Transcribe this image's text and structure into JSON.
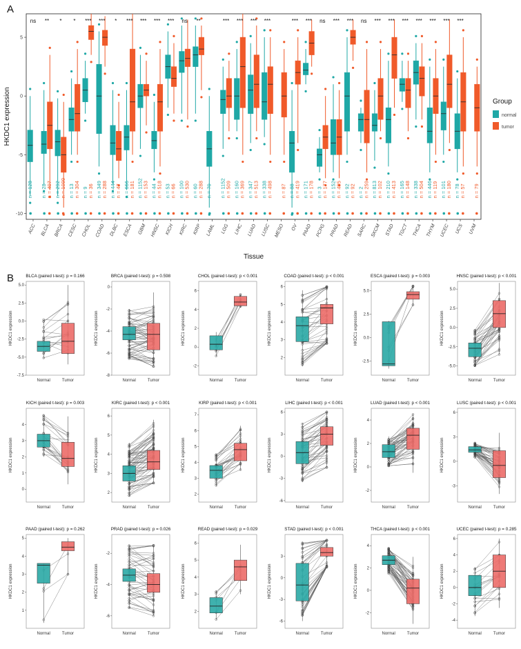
{
  "panel_labels": {
    "a": "A",
    "b": "B"
  },
  "colors": {
    "normal": "#1fa8a6",
    "tumor": "#f05a2a",
    "normal_paired": "#2aa9a5",
    "tumor_paired": "#ec6c68"
  },
  "chart_data": [
    {
      "type": "box",
      "ylabel": "HKDC1 expression",
      "xlabel": "Tissue",
      "ylim": [
        -10.5,
        7
      ],
      "yticks": [
        -10,
        -5,
        0,
        5
      ],
      "legend": {
        "title": "Group",
        "items": [
          "normal",
          "tumor"
        ],
        "position": "right"
      },
      "categories": [
        "ACC",
        "BLCA",
        "BRCA",
        "CESC",
        "CHOL",
        "COAD",
        "DLBC",
        "ESCA",
        "GBM",
        "HNSC",
        "KICH",
        "KIRC",
        "KIRP",
        "LAML",
        "LGG",
        "LIHC",
        "LUAD",
        "LUSC",
        "MESO",
        "OV",
        "PAAD",
        "PCPG",
        "PRAD",
        "READ",
        "SARC",
        "SKCM",
        "STAD",
        "TGCT",
        "THCA",
        "THYM",
        "UCEC",
        "UCS",
        "UVM"
      ],
      "significance": [
        "ns",
        "**",
        "*",
        "*",
        "***",
        "***",
        "*",
        "***",
        "***",
        "***",
        "***",
        "ns",
        "**",
        "",
        "***",
        "***",
        "***",
        "***",
        "",
        "***",
        "***",
        "ns",
        "***",
        "***",
        "ns",
        "***",
        "***",
        "***",
        "***",
        "***",
        "***",
        "***",
        ""
      ],
      "n_normal": [
        "128",
        "28",
        "292",
        "13",
        "9",
        "349",
        "444",
        "666",
        "1152",
        "44",
        "53",
        "100",
        "60",
        "70",
        "1152",
        "160",
        "347",
        "338",
        "",
        "88",
        "171",
        "3",
        "152",
        "92",
        "2",
        "813",
        "210",
        "165",
        "338",
        "446",
        "101",
        "78",
        ""
      ],
      "n_tumor": [
        "",
        "407",
        "1099",
        "304",
        "36",
        "288",
        "47",
        "181",
        "153",
        "518",
        "66",
        "530",
        "288",
        "",
        "509",
        "369",
        "513",
        "498",
        "87",
        "419",
        "178",
        "177",
        "495",
        "92",
        "259",
        "102",
        "413",
        "148",
        "504",
        "119",
        "180",
        "57",
        "79"
      ],
      "normal": [
        [
          -8.5,
          -5.6,
          -4.2,
          -2.9,
          0.0
        ],
        [
          -7.5,
          -4.9,
          -4.1,
          -3.0,
          0.5
        ],
        [
          -8.5,
          -5.1,
          -3.9,
          -2.9,
          -0.2
        ],
        [
          -5.0,
          -3.0,
          -2.0,
          -1.0,
          1.5
        ],
        [
          -1.5,
          -0.5,
          0.5,
          1.5,
          3.0
        ],
        [
          -6.0,
          -3.2,
          0.0,
          2.7,
          5.5
        ],
        [
          -7.5,
          -5.0,
          -4.0,
          -2.5,
          0.5
        ],
        [
          -8.0,
          -4.6,
          -3.5,
          -2.5,
          0.5
        ],
        [
          -4.5,
          -1.0,
          0.0,
          1.0,
          3.5
        ],
        [
          -6.5,
          -4.5,
          -3.8,
          -3.0,
          -0.5
        ],
        [
          -1.0,
          1.5,
          2.5,
          3.5,
          5.5
        ],
        [
          -1.5,
          2.0,
          3.0,
          3.8,
          6.0
        ],
        [
          -1.5,
          2.5,
          3.5,
          4.2,
          6.0
        ],
        [
          -9.5,
          -6.0,
          -4.5,
          -3.0,
          0.0
        ],
        [
          -4.5,
          -1.5,
          -0.3,
          0.5,
          2.5
        ],
        [
          -3.0,
          -2.0,
          0.0,
          1.5,
          4.0
        ],
        [
          -4.0,
          -1.5,
          0.5,
          1.8,
          4.5
        ],
        [
          -3.5,
          -2.0,
          -0.5,
          2.0,
          5.0
        ],
        [
          0,
          0,
          0,
          0,
          0
        ],
        [
          -9.5,
          -6.5,
          -4.0,
          -3.0,
          0.5
        ],
        [
          1.0,
          1.8,
          2.2,
          2.8,
          4.0
        ],
        [
          -6.5,
          -6.0,
          -5.0,
          -4.5,
          -3.5
        ],
        [
          -6.5,
          -5.0,
          -4.0,
          -2.0,
          1.0
        ],
        [
          -5.0,
          -3.0,
          0.0,
          2.0,
          5.0
        ],
        [
          -4.0,
          -3.0,
          -2.0,
          -1.5,
          -1.0
        ],
        [
          -5.5,
          -3.0,
          -2.5,
          -1.5,
          0.5
        ],
        [
          -6.0,
          -4.0,
          -2.0,
          -1.0,
          3.0
        ],
        [
          -0.5,
          0.4,
          1.0,
          1.5,
          3.0
        ],
        [
          -2.0,
          1.0,
          2.0,
          3.0,
          4.5
        ],
        [
          -6.5,
          -4.0,
          -3.0,
          -1.0,
          2.5
        ],
        [
          -5.0,
          -2.9,
          -1.5,
          -0.5,
          2.5
        ],
        [
          -6.5,
          -4.5,
          -3.0,
          -1.5,
          1.5
        ],
        [
          0,
          0,
          0,
          0,
          0
        ]
      ],
      "tumor": [
        [
          0,
          0,
          0,
          0,
          0
        ],
        [
          -8.0,
          -4.5,
          -2.5,
          -0.5,
          3.5
        ],
        [
          -9.5,
          -6.5,
          -5.0,
          -3.5,
          -0.5
        ],
        [
          -5.0,
          -3.0,
          -1.5,
          1.0,
          4.0
        ],
        [
          3.5,
          4.8,
          5.5,
          6.0,
          7.0
        ],
        [
          2.5,
          4.3,
          5.0,
          5.6,
          6.8
        ],
        [
          -7.0,
          -5.5,
          -4.5,
          -3.0,
          -0.5
        ],
        [
          -5.0,
          -3.0,
          -0.5,
          4.0,
          7.0
        ],
        [
          -2.5,
          0.0,
          0.5,
          1.0,
          3.0
        ],
        [
          -6.0,
          -3.0,
          -0.5,
          1.0,
          4.0
        ],
        [
          -1.5,
          0.8,
          1.5,
          2.5,
          4.5
        ],
        [
          -2.0,
          2.5,
          3.2,
          4.0,
          6.5
        ],
        [
          0.5,
          3.5,
          4.0,
          5.0,
          6.0
        ],
        [
          0,
          0,
          0,
          0,
          0
        ],
        [
          -3.0,
          -1.0,
          0.0,
          1.5,
          3.0
        ],
        [
          -5.0,
          -1.0,
          2.5,
          5.0,
          7.0
        ],
        [
          -3.0,
          -1.0,
          1.0,
          3.5,
          6.0
        ],
        [
          -5.0,
          -1.5,
          1.0,
          2.5,
          5.0
        ],
        [
          -5.0,
          -1.8,
          0.0,
          2.0,
          4.0
        ],
        [
          -4.0,
          1.0,
          2.0,
          3.0,
          5.0
        ],
        [
          2.5,
          3.5,
          4.5,
          5.5,
          6.5
        ],
        [
          -7.0,
          -4.5,
          -3.5,
          -2.5,
          0.0
        ],
        [
          -7.0,
          -5.0,
          -3.5,
          -2.0,
          0.5
        ],
        [
          3.0,
          4.4,
          5.0,
          5.6,
          6.5
        ],
        [
          -6.5,
          -4.0,
          -2.0,
          0.5,
          4.0
        ],
        [
          -3.0,
          -2.0,
          0.0,
          1.5,
          4.0
        ],
        [
          -1.0,
          1.5,
          3.5,
          5.0,
          6.5
        ],
        [
          -3.0,
          -1.0,
          0.5,
          1.5,
          3.0
        ],
        [
          -2.0,
          0.0,
          1.5,
          2.5,
          4.5
        ],
        [
          -5.0,
          -1.5,
          0.0,
          1.5,
          4.0
        ],
        [
          -4.0,
          -1.0,
          1.0,
          3.5,
          6.5
        ],
        [
          -6.0,
          -3.0,
          -0.5,
          2.0,
          5.0
        ],
        [
          -6.0,
          -3.0,
          -1.0,
          1.0,
          2.5
        ]
      ]
    },
    {
      "type": "paired-box",
      "title": "BLCA (paired t-test): p = 0.166",
      "ylabel": "HKDC1 expression",
      "categories": [
        "Normal",
        "Tumor"
      ],
      "yticks": [
        "-7.5",
        "-5.0",
        "-2.5",
        "0.0",
        "2.5",
        "5.0"
      ],
      "ylim": [
        -7.5,
        5.5
      ],
      "normal": [
        -5.2,
        -4.2,
        -3.5,
        -2.8,
        0.2
      ],
      "tumor": [
        -6.0,
        -4.5,
        -2.8,
        -0.3,
        5.0
      ],
      "pairs": 16,
      "seed": 1,
      "delta": 1.0,
      "spread": 2.5
    },
    {
      "type": "paired-box",
      "title": "BRCA (paired t-test): p = 0.598",
      "ylabel": "HKDC1 expression",
      "categories": [
        "Normal",
        "Tumor"
      ],
      "yticks": [
        "-8",
        "-6",
        "-4",
        "-2",
        "0"
      ],
      "ylim": [
        -8,
        0.5
      ],
      "normal": [
        -6.5,
        -4.8,
        -4.3,
        -3.6,
        -2.0
      ],
      "tumor": [
        -7.2,
        -5.7,
        -4.3,
        -3.3,
        -0.5
      ],
      "pairs": 60,
      "seed": 2,
      "delta": -0.1,
      "spread": 1.5
    },
    {
      "type": "paired-box",
      "title": "CHOL (paired t-test): p < 0.001",
      "ylabel": "HKDC1 expression",
      "categories": [
        "Normal",
        "Tumor"
      ],
      "yticks": [
        "-2",
        "0",
        "2",
        "4",
        "6"
      ],
      "ylim": [
        -3,
        7
      ],
      "normal": [
        -1.0,
        -0.3,
        0.3,
        1.2,
        1.6
      ],
      "tumor": [
        4.2,
        4.4,
        4.8,
        5.4,
        5.6
      ],
      "pairs": 8,
      "seed": 3,
      "delta": 4.5,
      "spread": 1.0
    },
    {
      "type": "paired-box",
      "title": "COAD (paired t-test): p < 0.001",
      "ylabel": "HKDC1 expression",
      "categories": [
        "Normal",
        "Tumor"
      ],
      "yticks": [
        "2",
        "3",
        "4",
        "5",
        "6"
      ],
      "ylim": [
        1,
        6.3
      ],
      "normal": [
        1.5,
        2.9,
        3.8,
        4.3,
        5.8
      ],
      "tumor": [
        2.8,
        3.9,
        4.8,
        5.0,
        6.0
      ],
      "pairs": 40,
      "seed": 4,
      "delta": 0.8,
      "spread": 1.0
    },
    {
      "type": "paired-box",
      "title": "ESCA (paired t-test): p = 0.003",
      "ylabel": "HKDC1 expression",
      "categories": [
        "Normal",
        "Tumor"
      ],
      "yticks": [
        "-2.5",
        "0.0",
        "2.5",
        "5.0"
      ],
      "ylim": [
        -4,
        6
      ],
      "normal": [
        -3.3,
        -3.0,
        -2.8,
        1.7,
        1.8
      ],
      "tumor": [
        3.5,
        4.1,
        4.6,
        4.9,
        5.5
      ],
      "pairs": 7,
      "seed": 5,
      "delta": 6.0,
      "spread": 2.0
    },
    {
      "type": "paired-box",
      "title": "HNSC (paired t-test): p < 0.001",
      "ylabel": "HKDC1 expression",
      "categories": [
        "Normal",
        "Tumor"
      ],
      "yticks": [
        "-5.0",
        "-2.5",
        "0.0",
        "2.5",
        "5.0"
      ],
      "ylim": [
        -6.2,
        6
      ],
      "normal": [
        -5.0,
        -3.8,
        -2.7,
        -2.0,
        -0.2
      ],
      "tumor": [
        -3.5,
        0.0,
        1.8,
        3.5,
        5.8
      ],
      "pairs": 40,
      "seed": 6,
      "delta": 3.5,
      "spread": 2.2
    },
    {
      "type": "paired-box",
      "title": "KICH (paired t-test): p = 0.003",
      "ylabel": "HKDC1 expression",
      "categories": [
        "Normal",
        "Tumor"
      ],
      "yticks": [
        "0",
        "1",
        "2",
        "3",
        "4"
      ],
      "ylim": [
        -0.8,
        5
      ],
      "normal": [
        2.0,
        2.6,
        3.0,
        3.4,
        4.6
      ],
      "tumor": [
        0.3,
        1.4,
        1.9,
        2.9,
        4.5
      ],
      "pairs": 24,
      "seed": 7,
      "delta": -1.0,
      "spread": 1.0
    },
    {
      "type": "paired-box",
      "title": "KIRC (paired t-test): p < 0.001",
      "ylabel": "HKDC1 expression",
      "categories": [
        "Normal",
        "Tumor"
      ],
      "yticks": [
        "2",
        "3",
        "4",
        "5",
        "6"
      ],
      "ylim": [
        1.5,
        6.4
      ],
      "normal": [
        1.8,
        2.6,
        3.0,
        3.4,
        4.6
      ],
      "tumor": [
        2.5,
        3.2,
        3.6,
        4.2,
        5.8
      ],
      "pairs": 70,
      "seed": 8,
      "delta": 0.6,
      "spread": 0.8
    },
    {
      "type": "paired-box",
      "title": "KIRP (paired t-test): p < 0.001",
      "ylabel": "HKDC1 expression",
      "categories": [
        "Normal",
        "Tumor"
      ],
      "yticks": [
        "2",
        "3",
        "4",
        "5",
        "6",
        "7"
      ],
      "ylim": [
        1.5,
        7.4
      ],
      "normal": [
        2.5,
        3.0,
        3.5,
        3.8,
        4.5
      ],
      "tumor": [
        3.5,
        4.1,
        4.8,
        5.2,
        6.3
      ],
      "pairs": 30,
      "seed": 9,
      "delta": 1.2,
      "spread": 0.8
    },
    {
      "type": "paired-box",
      "title": "LIHC (paired t-test): p < 0.001",
      "ylabel": "HKDC1 expression",
      "categories": [
        "Normal",
        "Tumor"
      ],
      "yticks": [
        "-6",
        "-3",
        "0",
        "3",
        "6"
      ],
      "ylim": [
        -6.2,
        6.5
      ],
      "normal": [
        -3.5,
        -1.0,
        0.5,
        2.0,
        4.5
      ],
      "tumor": [
        -1.5,
        1.5,
        3.0,
        4.0,
        6.0
      ],
      "pairs": 50,
      "seed": 10,
      "delta": 2.3,
      "spread": 2.0
    },
    {
      "type": "paired-box",
      "title": "LUAD (paired t-test): p < 0.001",
      "ylabel": "HKDC1 expression",
      "categories": [
        "Normal",
        "Tumor"
      ],
      "yticks": [
        "-2",
        "0",
        "2",
        "4"
      ],
      "ylim": [
        -3,
        5
      ],
      "normal": [
        0.0,
        0.8,
        1.3,
        1.9,
        2.6
      ],
      "tumor": [
        -0.5,
        1.5,
        2.7,
        3.3,
        4.5
      ],
      "pairs": 55,
      "seed": 11,
      "delta": 1.2,
      "spread": 1.2
    },
    {
      "type": "paired-box",
      "title": "LUSC (paired t-test): p < 0.001",
      "ylabel": "HKDC1 expression",
      "categories": [
        "Normal",
        "Tumor"
      ],
      "yticks": [
        "-3",
        "0",
        "3",
        "6"
      ],
      "ylim": [
        -5,
        6.5
      ],
      "normal": [
        0.5,
        1.1,
        1.4,
        1.8,
        2.3
      ],
      "tumor": [
        -4.0,
        -2.0,
        -0.5,
        1.3,
        3.5
      ],
      "pairs": 45,
      "seed": 12,
      "delta": -2.0,
      "spread": 2.0
    },
    {
      "type": "paired-box",
      "title": "PAAD (paired t-test): p = 0.262",
      "ylabel": "HKDC1 expression",
      "categories": [
        "Normal",
        "Tumor"
      ],
      "yticks": [
        "1",
        "2",
        "3",
        "4",
        "5"
      ],
      "ylim": [
        0,
        5.2
      ],
      "normal": [
        0.3,
        2.5,
        3.5,
        3.6,
        3.6
      ],
      "tumor": [
        3.0,
        4.3,
        4.5,
        4.8,
        5.0
      ],
      "pairs": 4,
      "seed": 13,
      "delta": 1.5,
      "spread": 1.2
    },
    {
      "type": "paired-box",
      "title": "PRAD (paired t-test): p = 0.026",
      "ylabel": "HKDC1 expression",
      "categories": [
        "Normal",
        "Tumor"
      ],
      "yticks": [
        "-6",
        "-4",
        "-2"
      ],
      "ylim": [
        -6.8,
        -0.8
      ],
      "normal": [
        -5.5,
        -3.8,
        -3.4,
        -3.0,
        -1.5
      ],
      "tumor": [
        -6.0,
        -4.5,
        -4.0,
        -3.3,
        -1.5
      ],
      "pairs": 45,
      "seed": 14,
      "delta": -0.4,
      "spread": 1.0
    },
    {
      "type": "paired-box",
      "title": "READ (paired t-test): p = 0.029",
      "ylabel": "HKDC1 expression",
      "categories": [
        "Normal",
        "Tumor"
      ],
      "yticks": [
        "2",
        "3",
        "4",
        "5",
        "6"
      ],
      "ylim": [
        1,
        6.5
      ],
      "normal": [
        1.5,
        1.9,
        2.3,
        2.8,
        3.2
      ],
      "tumor": [
        3.0,
        3.8,
        4.6,
        5.0,
        5.9
      ],
      "pairs": 8,
      "seed": 15,
      "delta": 2.0,
      "spread": 0.8
    },
    {
      "type": "paired-box",
      "title": "STAD (paired t-test): p < 0.001",
      "ylabel": "HKDC1 expression",
      "categories": [
        "Normal",
        "Tumor"
      ],
      "yticks": [
        "-6",
        "-3",
        "0",
        "3"
      ],
      "ylim": [
        -7,
        6
      ],
      "normal": [
        -6.0,
        -3.2,
        -1.0,
        2.0,
        5.0
      ],
      "tumor": [
        1.5,
        3.0,
        3.5,
        4.2,
        5.2
      ],
      "pairs": 40,
      "seed": 16,
      "delta": 3.5,
      "spread": 2.5
    },
    {
      "type": "paired-box",
      "title": "THCA (paired t-test): p < 0.001",
      "ylabel": "HKDC1 expression",
      "categories": [
        "Normal",
        "Tumor"
      ],
      "yticks": [
        "-2",
        "0",
        "2",
        "4"
      ],
      "ylim": [
        -3.4,
        5
      ],
      "normal": [
        1.5,
        2.3,
        2.7,
        3.1,
        3.8
      ],
      "tumor": [
        -3.0,
        -1.2,
        0.2,
        1.0,
        3.0
      ],
      "pairs": 55,
      "seed": 17,
      "delta": -2.5,
      "spread": 1.2
    },
    {
      "type": "paired-box",
      "title": "UCEC (paired t-test): p = 0.285",
      "ylabel": "HKDC1 expression",
      "categories": [
        "Normal",
        "Tumor"
      ],
      "yticks": [
        "-4",
        "-2",
        "0",
        "2",
        "4",
        "6"
      ],
      "ylim": [
        -5,
        6.5
      ],
      "normal": [
        -3.5,
        -1.0,
        0.0,
        1.5,
        2.5
      ],
      "tumor": [
        -2.5,
        0.0,
        2.0,
        4.0,
        6.0
      ],
      "pairs": 18,
      "seed": 18,
      "delta": 1.5,
      "spread": 2.0
    }
  ]
}
